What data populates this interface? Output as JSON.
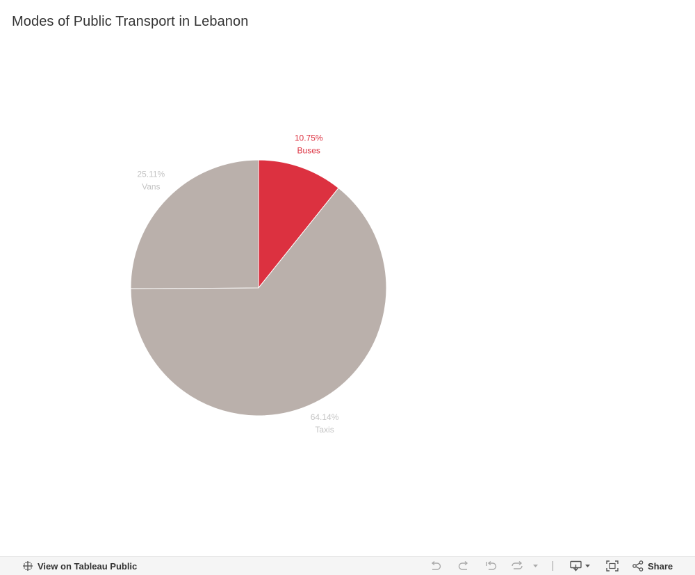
{
  "chart_data": {
    "type": "pie",
    "title": "Modes of Public Transport in Lebanon",
    "slices": [
      {
        "label": "Buses",
        "value": 10.75,
        "value_label": "10.75%",
        "color": "#dc3140",
        "label_color": "#dc3140"
      },
      {
        "label": "Taxis",
        "value": 64.14,
        "value_label": "64.14%",
        "color": "#bab0ab",
        "label_color": "#c4c4c4"
      },
      {
        "label": "Vans",
        "value": 25.11,
        "value_label": "25.11%",
        "color": "#bab0ab",
        "label_color": "#c4c4c4"
      }
    ],
    "start_angle_deg": 0,
    "direction": "clockwise"
  },
  "toolbar": {
    "view_link": "View on Tableau Public",
    "share_label": "Share",
    "icons": [
      "undo-icon",
      "redo-icon",
      "revert-icon",
      "refresh-icon",
      "dropdown-icon",
      "download-icon",
      "fullscreen-icon",
      "share-icon"
    ]
  }
}
